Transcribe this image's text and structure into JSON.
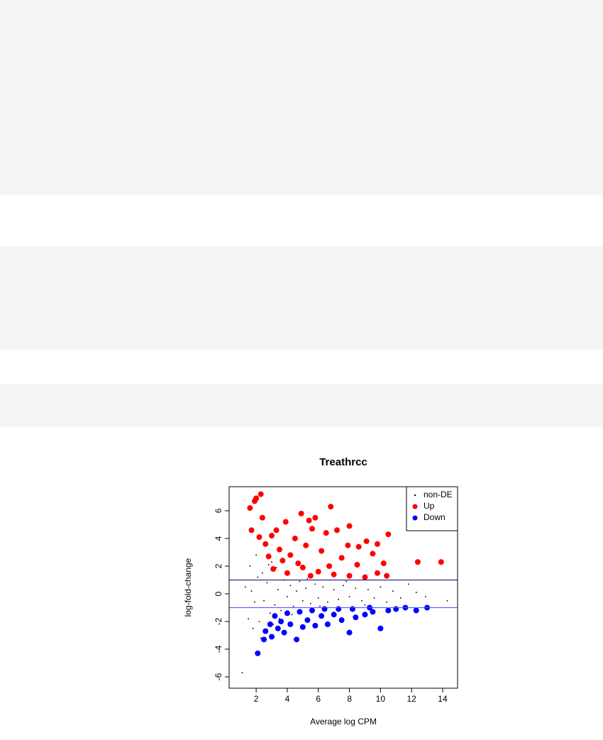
{
  "chart_data": {
    "type": "scatter",
    "title": "Treathrcc",
    "x_label": "Average log CPM",
    "y_label": "log-fold-change",
    "xlim": [
      0.26,
      14.96
    ],
    "ylim": [
      -6.82,
      7.74
    ],
    "xticks": [
      2,
      4,
      6,
      8,
      10,
      12,
      14
    ],
    "yticks": [
      -6,
      -4,
      -2,
      0,
      2,
      4,
      6
    ],
    "legend_position": "top-right",
    "hlines": [
      {
        "value": 1,
        "color": "#000080"
      },
      {
        "value": -1,
        "color": "#4b4bff"
      }
    ],
    "series": [
      {
        "name": "non-DE",
        "color": "#000000",
        "marker": "dot",
        "x": [
          1.1,
          1.5,
          1.6,
          1.8,
          2.0,
          2.2,
          2.4,
          2.5,
          2.7,
          2.9,
          3.0,
          3.2,
          3.4,
          3.6,
          3.8,
          4.0,
          4.2,
          4.4,
          4.6,
          4.8,
          5.0,
          5.2,
          5.5,
          5.8,
          6.0,
          6.3,
          6.6,
          7.0,
          7.3,
          7.6,
          8.0,
          8.4,
          8.8,
          9.2,
          9.6,
          10.0,
          10.4,
          10.8,
          11.3,
          11.8,
          12.3,
          12.9,
          14.3,
          1.3,
          1.9,
          2.1,
          2.6,
          3.3,
          3.5,
          4.1,
          4.3,
          5.3,
          6.1,
          7.8,
          9.0,
          2.3,
          1.7,
          2.8,
          3.1
        ],
        "y": [
          -5.7,
          -1.8,
          2.0,
          -2.5,
          2.8,
          -2.0,
          1.5,
          -0.5,
          0.8,
          -1.4,
          2.3,
          -0.8,
          0.3,
          -1.2,
          1.0,
          -0.2,
          0.6,
          -0.9,
          0.2,
          0.9,
          -0.5,
          0.4,
          -0.7,
          0.7,
          -0.3,
          0.5,
          -0.6,
          0.3,
          -0.4,
          0.6,
          -0.2,
          0.4,
          -0.5,
          0.3,
          -0.3,
          0.5,
          -0.6,
          0.2,
          -0.3,
          0.7,
          0.1,
          -0.2,
          -0.5,
          0.5,
          -0.6,
          1.2,
          -2.6,
          1.9,
          -1.8,
          1.4,
          -1.5,
          1.1,
          -0.9,
          0.9,
          -0.8,
          -3.2,
          0.2,
          2.1,
          -2.2
        ]
      },
      {
        "name": "Up",
        "color": "#ff0000",
        "marker": "circle",
        "x": [
          1.6,
          1.9,
          2.0,
          2.3,
          2.4,
          1.7,
          2.2,
          2.6,
          3.0,
          3.3,
          3.5,
          3.9,
          4.2,
          4.5,
          4.9,
          5.2,
          5.4,
          5.8,
          5.6,
          6.2,
          6.8,
          6.5,
          7.2,
          7.5,
          8.0,
          7.9,
          8.6,
          9.1,
          9.5,
          9.8,
          10.2,
          10.5,
          10.4,
          12.4,
          13.9,
          3.1,
          4.0,
          5.0,
          6.0,
          7.0,
          8.0,
          9.0,
          3.7,
          4.7,
          5.5,
          6.7,
          2.8,
          8.5,
          9.8
        ],
        "y": [
          6.2,
          6.7,
          6.9,
          7.2,
          5.5,
          4.6,
          4.1,
          3.6,
          4.2,
          4.6,
          3.2,
          5.2,
          2.8,
          4.0,
          5.8,
          3.5,
          5.3,
          5.5,
          4.7,
          3.1,
          6.3,
          4.4,
          4.6,
          2.6,
          4.9,
          3.5,
          3.4,
          3.8,
          2.9,
          3.6,
          2.2,
          4.3,
          1.3,
          2.3,
          2.3,
          1.8,
          1.5,
          1.9,
          1.6,
          1.4,
          1.3,
          1.2,
          2.4,
          2.2,
          1.3,
          2.0,
          2.7,
          2.1,
          1.5
        ]
      },
      {
        "name": "Down",
        "color": "#0000ff",
        "marker": "circle",
        "x": [
          2.1,
          2.5,
          2.6,
          3.0,
          3.4,
          3.8,
          4.2,
          4.6,
          5.0,
          5.3,
          5.8,
          6.2,
          6.6,
          7.0,
          7.5,
          8.0,
          8.4,
          9.0,
          9.5,
          10.0,
          10.5,
          11.0,
          11.6,
          12.3,
          13.0,
          3.2,
          4.0,
          4.8,
          5.6,
          6.4,
          7.3,
          8.2,
          9.3,
          3.6,
          2.9
        ],
        "y": [
          -4.3,
          -3.3,
          -2.7,
          -3.1,
          -2.5,
          -2.8,
          -2.2,
          -3.3,
          -2.4,
          -1.9,
          -2.3,
          -1.6,
          -2.2,
          -1.5,
          -1.9,
          -2.8,
          -1.7,
          -1.5,
          -1.3,
          -2.5,
          -1.2,
          -1.1,
          -1.0,
          -1.2,
          -1.0,
          -1.6,
          -1.4,
          -1.3,
          -1.2,
          -1.1,
          -1.1,
          -1.1,
          -1.0,
          -2.0,
          -2.2
        ]
      }
    ]
  }
}
